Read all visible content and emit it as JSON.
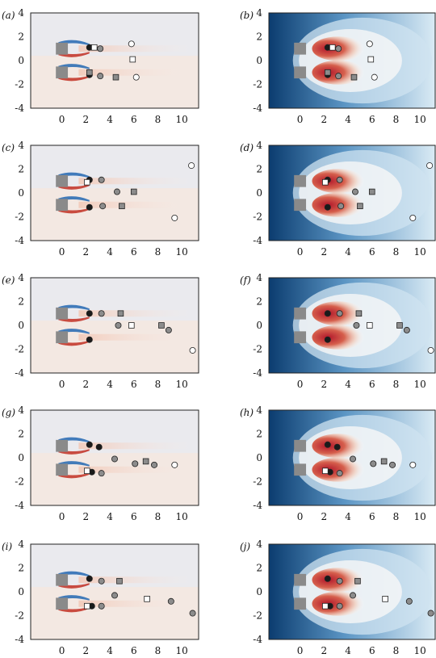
{
  "colors": {
    "vorticity_pos": "#c43a2e",
    "vorticity_neg": "#2f6fb5",
    "vorticity_bg": "#f3e8e2",
    "tke_low": "#0b3c6f",
    "tke_mid": "#dcecf5",
    "tke_high": "#b2182b",
    "body_square": "#8a8a8a"
  },
  "chart_data": {
    "type": "scatter",
    "x_ticks": [
      0,
      2,
      4,
      6,
      8,
      10
    ],
    "y_ticks": [
      -4,
      -2,
      0,
      2,
      4
    ],
    "xlim": [
      -2.6,
      11.4
    ],
    "ylim": [
      -4,
      4
    ],
    "bodies": [
      {
        "x": 0,
        "y": 1
      },
      {
        "x": 0,
        "y": -1
      }
    ],
    "rows": [
      {
        "left_label": "(a)",
        "right_label": "(b)",
        "squares": [
          {
            "x": 2.7,
            "y": 1.1,
            "shade": "white"
          },
          {
            "x": 5.9,
            "y": 0.1,
            "shade": "white"
          },
          {
            "x": 2.3,
            "y": -1.0,
            "shade": "gray"
          },
          {
            "x": 4.5,
            "y": -1.4,
            "shade": "gray"
          }
        ],
        "circles": [
          {
            "x": 2.3,
            "y": 1.1,
            "shade": "black"
          },
          {
            "x": 3.2,
            "y": 1.0,
            "shade": "gray"
          },
          {
            "x": 5.8,
            "y": 1.4,
            "shade": "white"
          },
          {
            "x": 2.3,
            "y": -1.2,
            "shade": "black"
          },
          {
            "x": 3.2,
            "y": -1.3,
            "shade": "gray"
          },
          {
            "x": 6.2,
            "y": -1.4,
            "shade": "white"
          }
        ]
      },
      {
        "left_label": "(c)",
        "right_label": "(d)",
        "squares": [
          {
            "x": 2.1,
            "y": 0.9,
            "shade": "white"
          },
          {
            "x": 6.0,
            "y": 0.1,
            "shade": "gray"
          },
          {
            "x": 5.0,
            "y": -1.1,
            "shade": "gray"
          }
        ],
        "circles": [
          {
            "x": 2.3,
            "y": 1.1,
            "shade": "black"
          },
          {
            "x": 3.3,
            "y": 1.1,
            "shade": "gray"
          },
          {
            "x": 4.6,
            "y": 0.1,
            "shade": "gray"
          },
          {
            "x": 10.8,
            "y": 2.3,
            "shade": "white"
          },
          {
            "x": 2.3,
            "y": -1.2,
            "shade": "black"
          },
          {
            "x": 3.4,
            "y": -1.1,
            "shade": "gray"
          },
          {
            "x": 9.4,
            "y": -2.1,
            "shade": "white"
          }
        ]
      },
      {
        "left_label": "(e)",
        "right_label": "(f)",
        "squares": [
          {
            "x": 4.9,
            "y": 1.0,
            "shade": "gray"
          },
          {
            "x": 5.8,
            "y": 0.0,
            "shade": "white"
          },
          {
            "x": 8.3,
            "y": 0.0,
            "shade": "gray"
          }
        ],
        "circles": [
          {
            "x": 2.3,
            "y": 1.0,
            "shade": "black"
          },
          {
            "x": 3.3,
            "y": 1.0,
            "shade": "gray"
          },
          {
            "x": 2.3,
            "y": -1.2,
            "shade": "black"
          },
          {
            "x": 4.7,
            "y": 0.0,
            "shade": "gray"
          },
          {
            "x": 8.9,
            "y": -0.4,
            "shade": "gray"
          },
          {
            "x": 10.9,
            "y": -2.1,
            "shade": "white"
          }
        ]
      },
      {
        "left_label": "(g)",
        "right_label": "(h)",
        "squares": [
          {
            "x": 2.1,
            "y": -1.1,
            "shade": "white"
          },
          {
            "x": 7.0,
            "y": -0.3,
            "shade": "gray"
          }
        ],
        "circles": [
          {
            "x": 2.3,
            "y": 1.1,
            "shade": "black"
          },
          {
            "x": 3.1,
            "y": 0.9,
            "shade": "black"
          },
          {
            "x": 2.5,
            "y": -1.2,
            "shade": "black"
          },
          {
            "x": 3.3,
            "y": -1.3,
            "shade": "gray"
          },
          {
            "x": 4.4,
            "y": -0.1,
            "shade": "gray"
          },
          {
            "x": 6.1,
            "y": -0.5,
            "shade": "gray"
          },
          {
            "x": 7.7,
            "y": -0.6,
            "shade": "gray"
          },
          {
            "x": 9.4,
            "y": -0.6,
            "shade": "white"
          }
        ]
      },
      {
        "left_label": "(i)",
        "right_label": "(j)",
        "squares": [
          {
            "x": 4.8,
            "y": 0.9,
            "shade": "gray"
          },
          {
            "x": 2.1,
            "y": -1.2,
            "shade": "white"
          },
          {
            "x": 7.1,
            "y": -0.6,
            "shade": "white"
          }
        ],
        "circles": [
          {
            "x": 2.3,
            "y": 1.1,
            "shade": "black"
          },
          {
            "x": 3.3,
            "y": 0.9,
            "shade": "gray"
          },
          {
            "x": 2.5,
            "y": -1.2,
            "shade": "black"
          },
          {
            "x": 3.3,
            "y": -1.2,
            "shade": "gray"
          },
          {
            "x": 4.4,
            "y": -0.3,
            "shade": "gray"
          },
          {
            "x": 9.1,
            "y": -0.8,
            "shade": "gray"
          },
          {
            "x": 10.9,
            "y": -1.8,
            "shade": "gray"
          }
        ]
      }
    ]
  }
}
